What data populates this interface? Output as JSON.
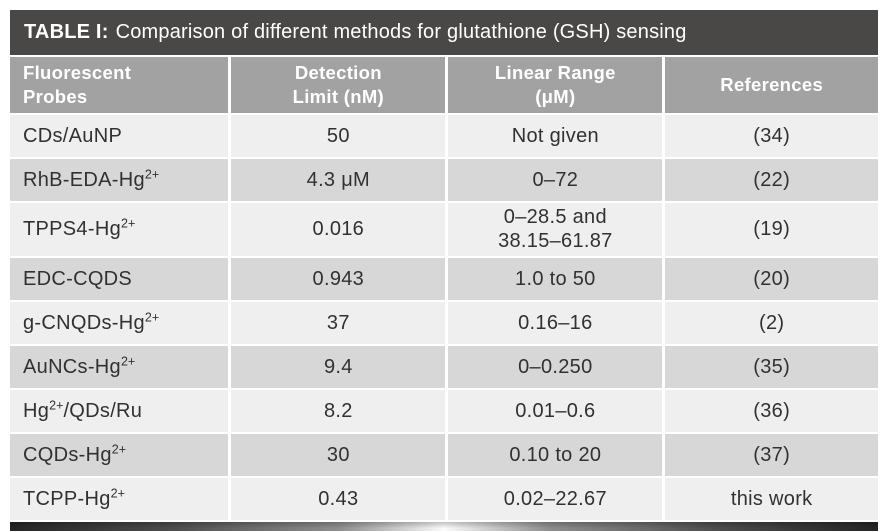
{
  "title_bar": {
    "label": "TABLE I:",
    "text": "Comparison of different methods for glutathione (GSH) sensing"
  },
  "table": {
    "header": {
      "columns": [
        "Fluorescent\nProbes",
        "Detection\nLimit (nM)",
        "Linear Range\n(μM)",
        "References"
      ]
    },
    "rows": [
      {
        "probe": "CDs/AuNP",
        "limit": "50",
        "range": "Not given",
        "ref": "(34)"
      },
      {
        "probe": "RhB-EDA-Hg^{2+}",
        "limit": "4.3 μM",
        "range": "0–72",
        "ref": "(22)"
      },
      {
        "probe": "TPPS4-Hg^{2+}",
        "limit": "0.016",
        "range": "0–28.5 and\n38.15–61.87",
        "ref": "(19)"
      },
      {
        "probe": "EDC-CQDS",
        "limit": "0.943",
        "range": "1.0 to 50",
        "ref": "(20)"
      },
      {
        "probe": "g-CNQDs-Hg^{2+}",
        "limit": "37",
        "range": "0.16–16",
        "ref": "(2)"
      },
      {
        "probe": "AuNCs-Hg^{2+}",
        "limit": "9.4",
        "range": "0–0.250",
        "ref": "(35)"
      },
      {
        "probe": "Hg^{2+}/QDs/Ru",
        "limit": "8.2",
        "range": "0.01–0.6",
        "ref": "(36)"
      },
      {
        "probe": "CQDs-Hg^{2+}",
        "limit": "30",
        "range": "0.10 to 20",
        "ref": "(37)"
      },
      {
        "probe": "TCPP-Hg^{2+}",
        "limit": "0.43",
        "range": "0.02–22.67",
        "ref": "this work"
      }
    ]
  },
  "colors": {
    "title_bar_bg": "#4a4847",
    "header_bg": "#a3a2a2",
    "header_text": "#ffffff",
    "row_light": "#f0efef",
    "row_dark": "#d8d7d7",
    "body_text": "#323132"
  }
}
